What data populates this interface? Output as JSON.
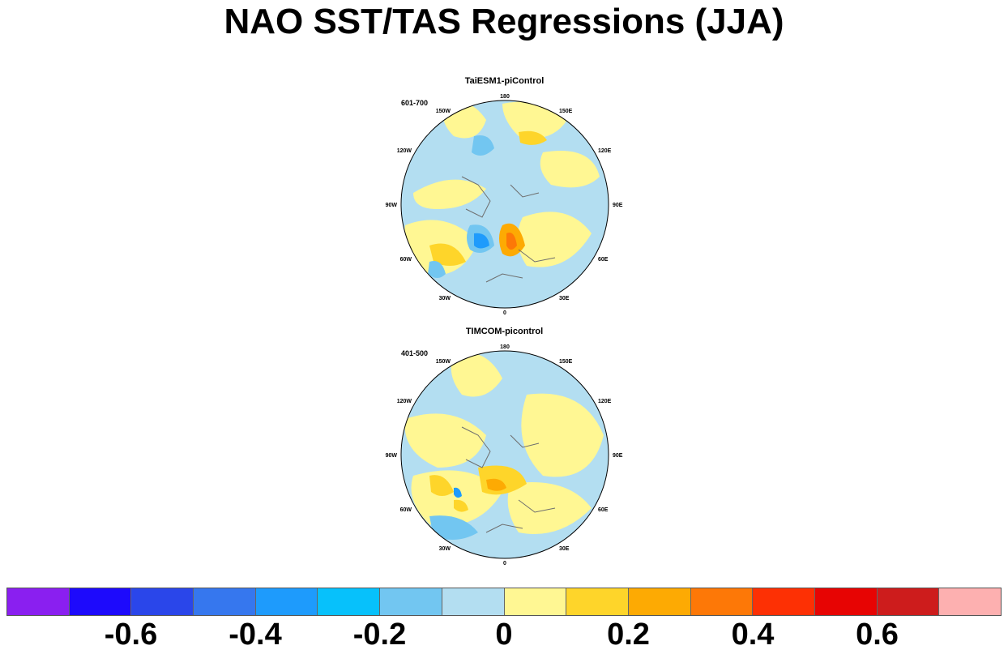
{
  "title": "NAO SST/TAS Regressions (JJA)",
  "panels": [
    {
      "title": "TaiESM1-piControl",
      "period": "601-700",
      "lon_labels": {
        "n": "180",
        "s": "0",
        "w90": "90W",
        "e90": "90E",
        "w120": "120W",
        "e120": "120E",
        "w60": "60W",
        "e60": "60E",
        "w150": "150W",
        "e150": "150E",
        "w30": "30W",
        "e30": "30E"
      }
    },
    {
      "title": "TIMCOM-picontrol",
      "period": "401-500",
      "lon_labels": {
        "n": "180",
        "s": "0",
        "w90": "90W",
        "e90": "90E",
        "w120": "120W",
        "e120": "120E",
        "w60": "60W",
        "e60": "60E",
        "w150": "150W",
        "e150": "150E",
        "w30": "30W",
        "e30": "30E"
      }
    }
  ],
  "colorbar": {
    "colors": [
      "#8a1ff0",
      "#1d0afc",
      "#2a46ea",
      "#3677ee",
      "#1e9bfc",
      "#07c1fb",
      "#72c6f1",
      "#b3def1",
      "#fff793",
      "#fed52a",
      "#fdaa03",
      "#fd7807",
      "#fd3004",
      "#e70403",
      "#cd1c1c",
      "#fdb0b0"
    ],
    "tick_labels": [
      "-0.6",
      "-0.4",
      "-0.2",
      "0",
      "0.2",
      "0.4",
      "0.6"
    ]
  }
}
